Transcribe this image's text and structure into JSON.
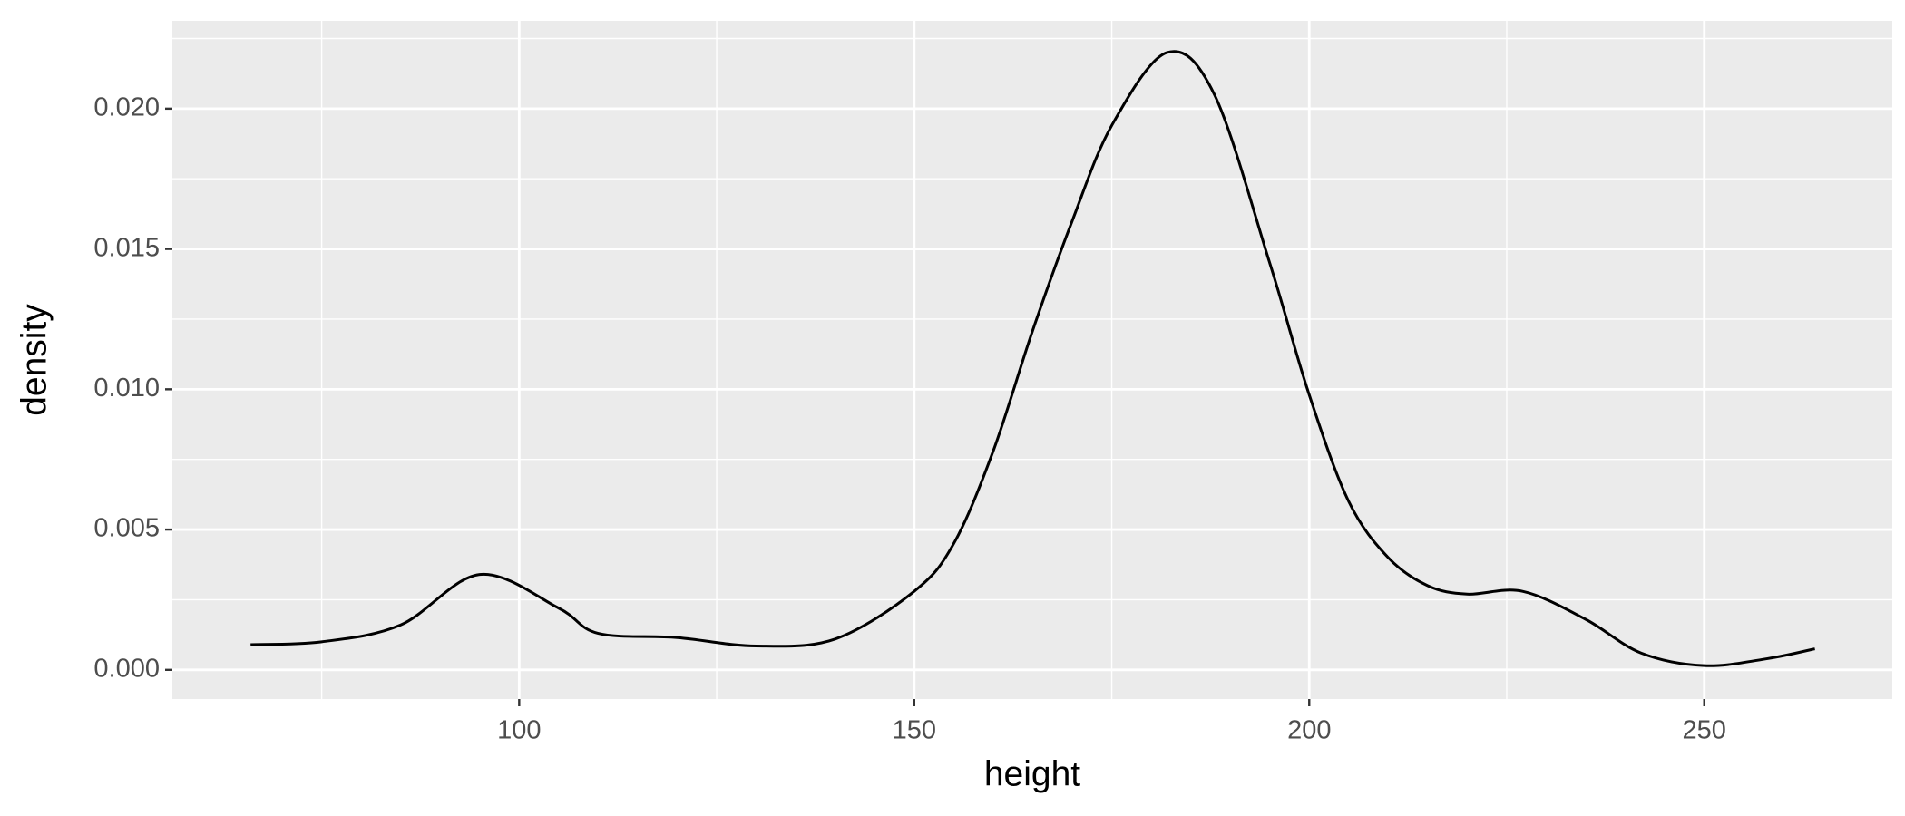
{
  "chart_data": {
    "type": "density",
    "x_label": "height",
    "y_label": "density",
    "x": [
      66,
      75,
      85,
      95,
      105,
      110,
      120,
      130,
      140,
      150,
      155,
      160,
      165,
      170,
      175,
      182,
      188,
      195,
      200,
      205,
      210,
      215,
      220,
      227,
      235,
      242,
      250,
      258,
      264
    ],
    "series": [
      {
        "color": "#000000",
        "values": [
          0.0009,
          0.001,
          0.0016,
          0.0034,
          0.0022,
          0.0013,
          0.00115,
          0.00085,
          0.0011,
          0.0028,
          0.0045,
          0.0078,
          0.0121,
          0.016,
          0.0194,
          0.022,
          0.0205,
          0.0145,
          0.0098,
          0.006,
          0.004,
          0.003,
          0.0027,
          0.0028,
          0.0018,
          0.0006,
          0.00015,
          0.0004,
          0.00075
        ]
      }
    ],
    "xlim": [
      56.1,
      273.8
    ],
    "ylim": [
      -0.00104,
      0.02313
    ],
    "xticks": [
      100,
      150,
      200,
      250
    ],
    "yticks": [
      {
        "value": 0,
        "label": "0.000"
      },
      {
        "value": 0.005,
        "label": "0.005"
      },
      {
        "value": 0.01,
        "label": "0.010"
      },
      {
        "value": 0.015,
        "label": "0.015"
      },
      {
        "value": 0.02,
        "label": "0.020"
      }
    ],
    "x_minor_ticks": [
      75,
      125,
      175,
      225
    ],
    "y_minor_ticks": [
      0.0025,
      0.0075,
      0.0125,
      0.0175,
      0.0225
    ],
    "grid": true
  }
}
